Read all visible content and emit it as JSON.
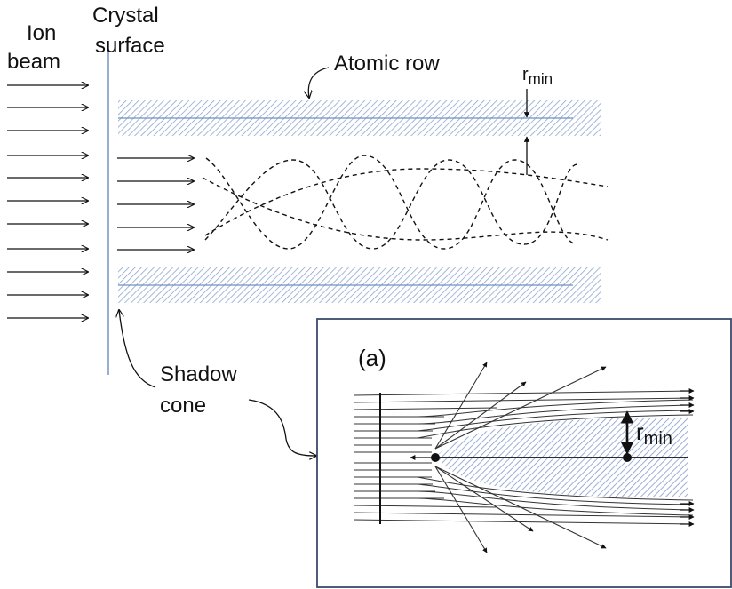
{
  "labels": {
    "ion_beam_line1": "Ion",
    "ion_beam_line2": "beam",
    "crystal_line1": "Crystal",
    "crystal_line2": "surface",
    "atomic_row": "Atomic row",
    "r_main": "r",
    "r_sub": "min",
    "shadow_line1": "Shadow",
    "shadow_line2": "cone",
    "inset_label": "(a)",
    "inset_r": "r",
    "inset_r_sub": "min"
  },
  "colors": {
    "atomic_row_hatch": "#8fa6cf",
    "atomic_row_line": "#6f8fc4",
    "shadow_fill": "#a9bde0",
    "crystal_surface": "#7d9bc9",
    "inset_border": "#3a4a6b",
    "ink": "#111111"
  }
}
